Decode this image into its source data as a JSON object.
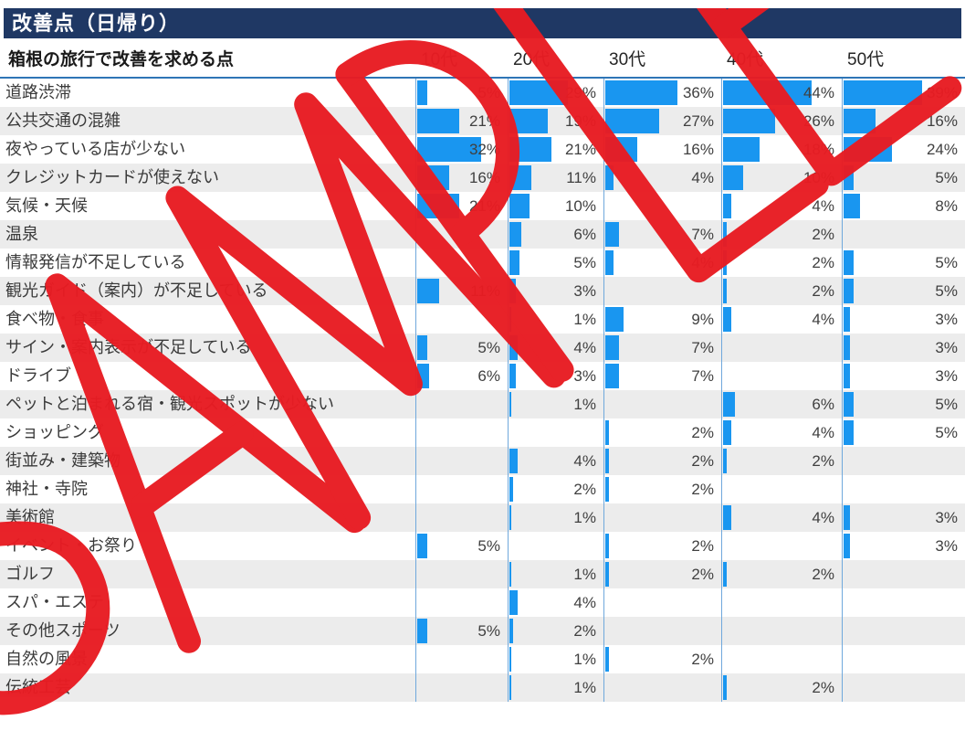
{
  "title": "改善点（日帰り）",
  "subtitle": "箱根の旅行で改善を求める点",
  "watermark_text": "SAMPLE",
  "colors": {
    "title_bg": "#1F3864",
    "bar_blue": "#1996F0",
    "column_divider": "#6FA8DC",
    "row_stripe": "#ECECEC",
    "header_line": "#2E75B6",
    "watermark_red": "#E81C23"
  },
  "chart_data": {
    "type": "bar",
    "title": "改善点（日帰り）",
    "xlabel": "箱根の旅行で改善を求める点",
    "unit": "%",
    "grid": false,
    "legend_position": "column-headers-top",
    "xlim": [
      0,
      46
    ],
    "categories": [
      "道路渋滞",
      "公共交通の混雑",
      "夜やっている店が少ない",
      "クレジットカードが使えない",
      "気候・天候",
      "温泉",
      "情報発信が不足している",
      "観光ガイド（案内）が不足している",
      "食べ物・食事",
      "サイン・案内表示が不足している",
      "ドライブ",
      "ペットと泊まれる宿・観光スポットが少ない",
      "ショッピング",
      "街並み・建築物",
      "神社・寺院",
      "美術館",
      "イベント・お祭り",
      "ゴルフ",
      "スパ・エステ",
      "その他スポーツ",
      "自然の風景",
      "伝統工芸"
    ],
    "series": [
      {
        "name": "10代",
        "values": [
          5,
          21,
          32,
          16,
          21,
          null,
          null,
          11,
          null,
          5,
          6,
          null,
          null,
          null,
          null,
          null,
          5,
          null,
          null,
          5,
          null,
          null
        ]
      },
      {
        "name": "20代",
        "values": [
          29,
          19,
          21,
          11,
          10,
          6,
          5,
          3,
          1,
          4,
          3,
          1,
          null,
          4,
          2,
          1,
          null,
          1,
          4,
          2,
          1,
          1
        ]
      },
      {
        "name": "30代",
        "values": [
          36,
          27,
          16,
          4,
          null,
          7,
          4,
          null,
          9,
          7,
          7,
          null,
          2,
          2,
          2,
          null,
          2,
          2,
          null,
          null,
          2,
          null
        ]
      },
      {
        "name": "40代",
        "values": [
          44,
          26,
          18,
          10,
          4,
          2,
          2,
          2,
          4,
          null,
          null,
          6,
          4,
          2,
          null,
          4,
          null,
          2,
          null,
          null,
          null,
          2
        ]
      },
      {
        "name": "50代",
        "values": [
          39,
          16,
          24,
          5,
          8,
          null,
          5,
          5,
          3,
          3,
          3,
          5,
          5,
          null,
          null,
          3,
          3,
          null,
          null,
          null,
          null,
          null
        ]
      }
    ]
  }
}
